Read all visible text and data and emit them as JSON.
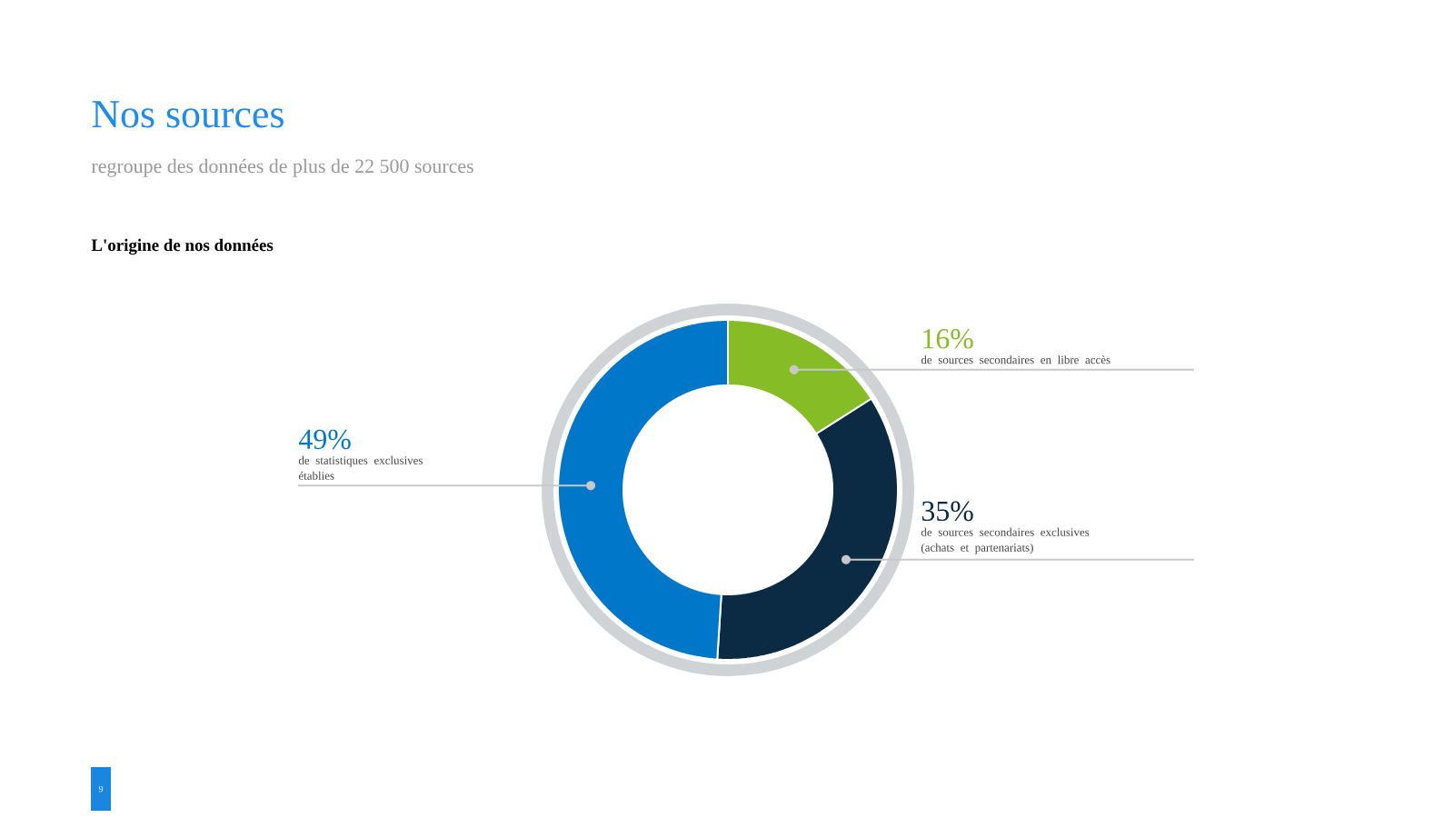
{
  "chart_data": {
    "type": "donut",
    "title": "Nos sources",
    "subtitle": "regroupe des données de plus de 22 500 sources",
    "annotations": [
      "L'origine de nos données",
      "9"
    ],
    "categories": [
      "de sources secondaires en libre accès",
      "de sources secondaires exclusives (achats et partenariats)",
      "de statistiques exclusives établies"
    ],
    "values": [
      16,
      35,
      49
    ],
    "colors": [
      "#86bc25",
      "#0b2a44",
      "#0077c8"
    ],
    "value_labels": [
      "16%",
      "35%",
      "49%"
    ]
  }
}
